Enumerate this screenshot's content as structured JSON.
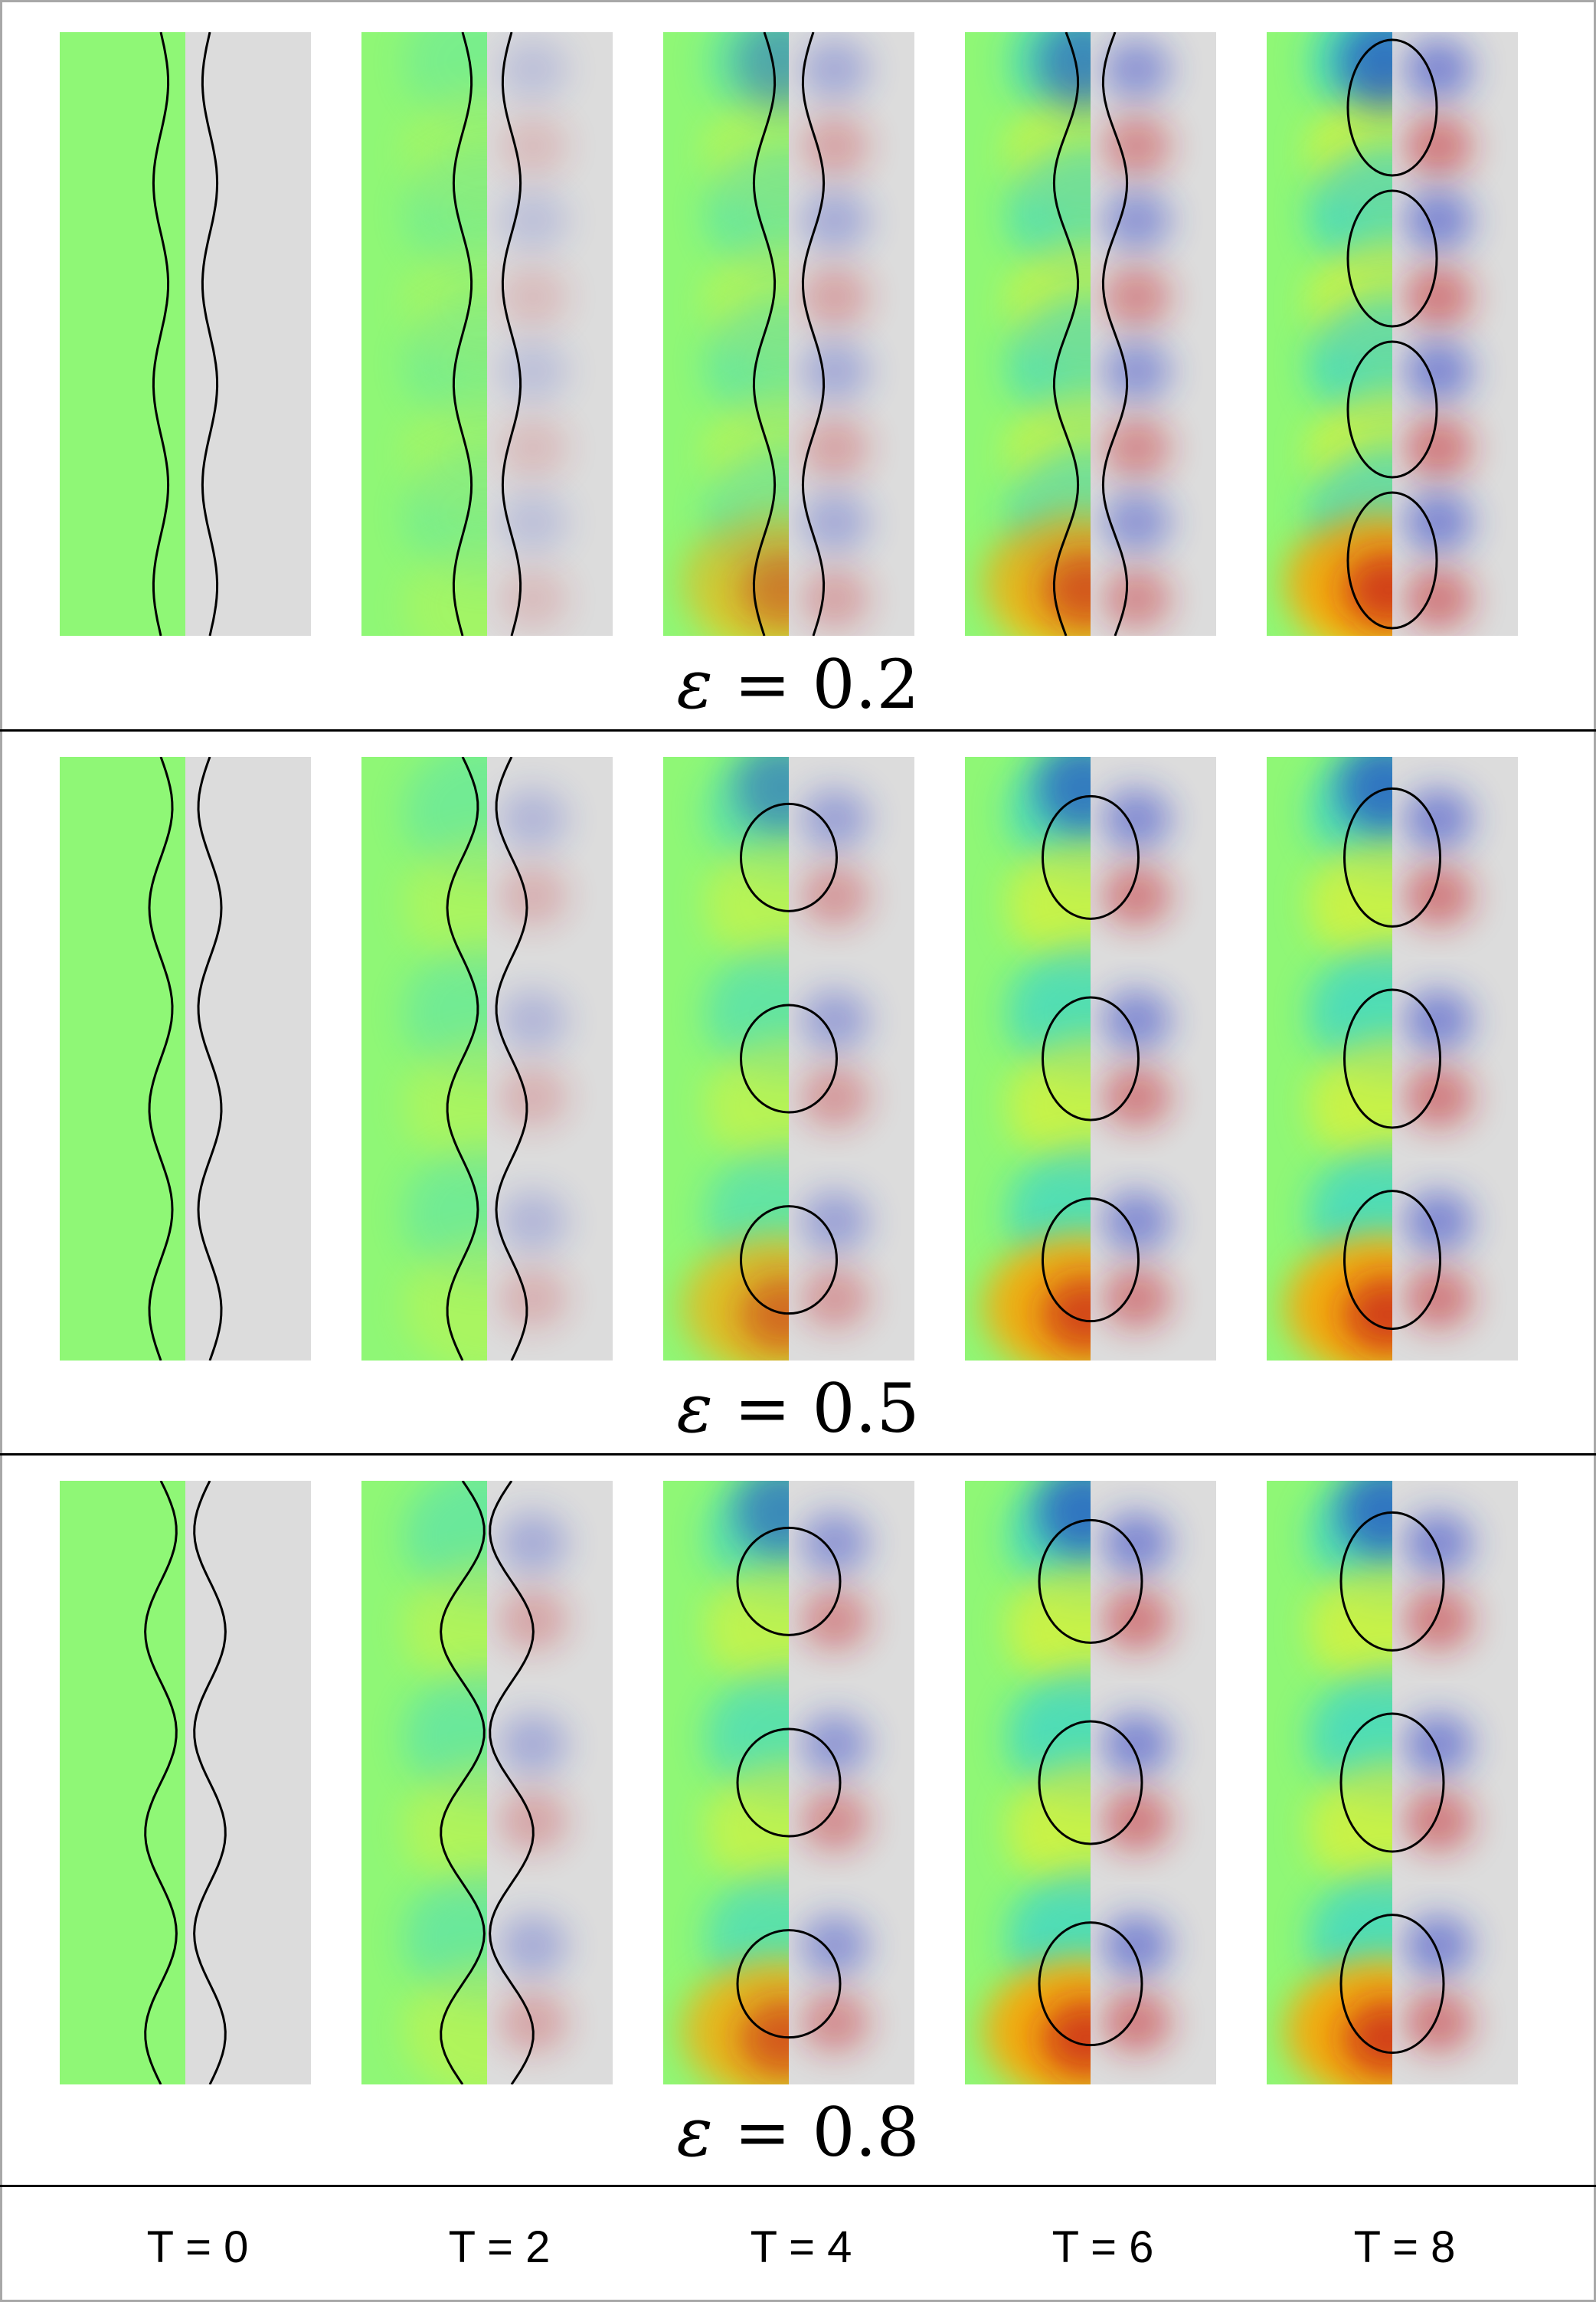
{
  "rows": [
    {
      "epsilon_label": "0.2",
      "epsilon": 0.2
    },
    {
      "epsilon_label": "0.5",
      "epsilon": 0.5
    },
    {
      "epsilon_label": "0.8",
      "epsilon": 0.8
    }
  ],
  "epsilon_symbol": "ε",
  "equals": "=",
  "time_labels": [
    "T = 0",
    "T = 2",
    "T = 4",
    "T = 6",
    "T = 8"
  ],
  "colors": {
    "background_left": "#8ff776",
    "background_right": "#dcdcdc",
    "high": "#c5141d",
    "mid_high": "#ff9a00",
    "mid": "#f7ef22",
    "low": "#1cc8ea",
    "very_low": "#1a33c8",
    "contour": "#000000"
  }
}
